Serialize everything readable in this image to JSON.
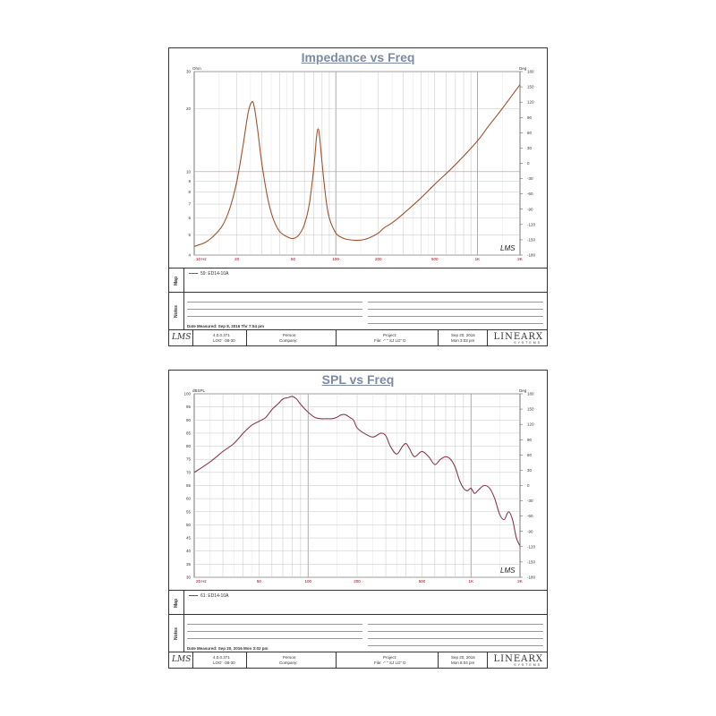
{
  "chart_data": [
    {
      "type": "line",
      "title": "Impedance vs Freq",
      "ylabel": "Ohm",
      "y2label": "Deg",
      "xscale": "log",
      "yscale": "log",
      "xlim": [
        10,
        2000
      ],
      "ylim": [
        4,
        30
      ],
      "y2lim": [
        -180,
        180
      ],
      "grid": true,
      "x_ticks": [
        {
          "v": 10,
          "label": "10 Hz"
        },
        {
          "v": 20,
          "label": "20"
        },
        {
          "v": 50,
          "label": "50"
        },
        {
          "v": 100,
          "label": "100"
        },
        {
          "v": 200,
          "label": "200"
        },
        {
          "v": 500,
          "label": "500"
        },
        {
          "v": 1000,
          "label": "1K"
        },
        {
          "v": 2000,
          "label": "2K"
        }
      ],
      "y_ticks": [
        {
          "v": 30,
          "label": "30"
        },
        {
          "v": 20,
          "label": "20"
        },
        {
          "v": 10,
          "label": "10"
        },
        {
          "v": 9,
          "label": "9"
        },
        {
          "v": 8,
          "label": "8"
        },
        {
          "v": 7,
          "label": "7"
        },
        {
          "v": 6,
          "label": "6"
        },
        {
          "v": 5,
          "label": "5"
        },
        {
          "v": 4,
          "label": "4"
        }
      ],
      "y2_ticks": [
        "180",
        "150",
        "120",
        "90",
        "60",
        "30",
        "0",
        "-30",
        "-60",
        "-90",
        "-120",
        "-150",
        "-180"
      ],
      "ref_line": 10,
      "series": [
        {
          "name": "59: ED14-10A",
          "color": "#a0522d",
          "x": [
            10,
            12,
            14,
            16,
            18,
            20,
            22,
            24,
            25.5,
            26.5,
            28,
            30,
            33,
            36,
            40,
            45,
            50,
            55,
            60,
            65,
            70,
            73,
            75,
            77,
            80,
            85,
            90,
            100,
            110,
            120,
            140,
            160,
            180,
            200,
            220,
            250,
            300,
            400,
            500,
            700,
            1000,
            1200,
            1500,
            2000
          ],
          "y": [
            4.4,
            4.6,
            5.0,
            5.6,
            6.8,
            9.0,
            13.0,
            19.0,
            21.5,
            20.5,
            16.0,
            11.0,
            7.5,
            6.0,
            5.2,
            4.9,
            4.8,
            5.0,
            5.6,
            7.0,
            10.5,
            14.5,
            16.0,
            14.5,
            11.0,
            7.5,
            6.0,
            5.1,
            4.85,
            4.75,
            4.7,
            4.75,
            4.9,
            5.1,
            5.4,
            5.7,
            6.3,
            7.5,
            8.7,
            10.8,
            14.0,
            16.5,
            20.0,
            26.0
          ]
        }
      ]
    },
    {
      "type": "line",
      "title": "SPL vs Freq",
      "ylabel": "dBSPL",
      "y2label": "Deg",
      "xscale": "log",
      "xlim": [
        20,
        2000
      ],
      "ylim": [
        30,
        100
      ],
      "y2lim": [
        -180,
        180
      ],
      "grid": true,
      "x_ticks": [
        {
          "v": 20,
          "label": "20 Hz"
        },
        {
          "v": 50,
          "label": "50"
        },
        {
          "v": 100,
          "label": "100"
        },
        {
          "v": 200,
          "label": "200"
        },
        {
          "v": 500,
          "label": "500"
        },
        {
          "v": 1000,
          "label": "1K"
        },
        {
          "v": 2000,
          "label": "2K"
        }
      ],
      "y_ticks": [
        {
          "v": 100,
          "label": "100"
        },
        {
          "v": 95,
          "label": "95"
        },
        {
          "v": 90,
          "label": "90"
        },
        {
          "v": 85,
          "label": "85"
        },
        {
          "v": 80,
          "label": "80"
        },
        {
          "v": 75,
          "label": "75"
        },
        {
          "v": 70,
          "label": "70"
        },
        {
          "v": 65,
          "label": "65"
        },
        {
          "v": 60,
          "label": "60"
        },
        {
          "v": 55,
          "label": "55"
        },
        {
          "v": 50,
          "label": "50"
        },
        {
          "v": 45,
          "label": "45"
        },
        {
          "v": 40,
          "label": "40"
        },
        {
          "v": 35,
          "label": "35"
        },
        {
          "v": 30,
          "label": "30"
        }
      ],
      "y2_ticks": [
        "180",
        "150",
        "120",
        "90",
        "60",
        "30",
        "0",
        "-30",
        "-60",
        "-90",
        "-120",
        "-150",
        "-180"
      ],
      "series": [
        {
          "name": "61: ED14-10A",
          "color": "#8b3a4a",
          "x": [
            20,
            25,
            30,
            35,
            40,
            45,
            50,
            55,
            60,
            65,
            70,
            75,
            80,
            85,
            90,
            100,
            110,
            120,
            130,
            140,
            150,
            160,
            170,
            180,
            190,
            200,
            220,
            250,
            280,
            300,
            320,
            350,
            380,
            400,
            420,
            450,
            500,
            550,
            600,
            650,
            700,
            750,
            800,
            850,
            900,
            950,
            1000,
            1050,
            1100,
            1200,
            1300,
            1400,
            1500,
            1600,
            1700,
            1800,
            1900,
            2000
          ],
          "y": [
            70,
            74,
            78,
            81,
            85,
            88,
            89.5,
            91,
            94,
            96,
            98,
            98.5,
            99,
            98,
            96,
            93,
            91,
            90.5,
            90.5,
            90.5,
            91,
            92,
            92,
            91,
            90,
            87,
            85,
            83.5,
            85,
            84,
            80,
            77,
            80,
            81,
            79,
            76,
            78,
            76,
            73,
            75,
            76,
            75,
            72,
            67,
            64,
            63,
            64,
            62,
            63,
            65,
            64,
            60,
            54,
            52,
            55,
            52,
            45,
            42
          ]
        }
      ]
    }
  ],
  "impedance_panel": {
    "legend_label": "59: ED14-10A",
    "map_label": "Map",
    "notes_label": "Notes",
    "measured": "Date Measured: Sep 8, 2016  Thr 7:54 pm",
    "footer": {
      "logo": "LMS",
      "version": "4.0.0.371",
      "version2": "LOG' -38-30",
      "person": "Person:",
      "company": "Company:",
      "project": "Project:",
      "file": "File: -\" \" SJ LG\" D",
      "date": "Sep 20, 2016",
      "time": "Mon  3:03 pm",
      "brand": "LINEARX",
      "brand_sub": "SYSTEMS"
    }
  },
  "spl_panel": {
    "legend_label": "61: ED14-10A",
    "map_label": "Map",
    "notes_label": "Notes",
    "measured": "Date Measured: Sep 20, 2016  Mon 3:02 pm",
    "footer": {
      "logo": "LMS",
      "version": "4.0.0.371",
      "version2": "LOG' -38-30",
      "person": "Person:",
      "company": "Company:",
      "project": "Project:",
      "file": "File: -\" \" SJ LG\" D",
      "date": "Sep 20, 2016",
      "time": "Mon  8:04 pm",
      "brand": "LINEARX",
      "brand_sub": "SYSTEMS"
    }
  }
}
